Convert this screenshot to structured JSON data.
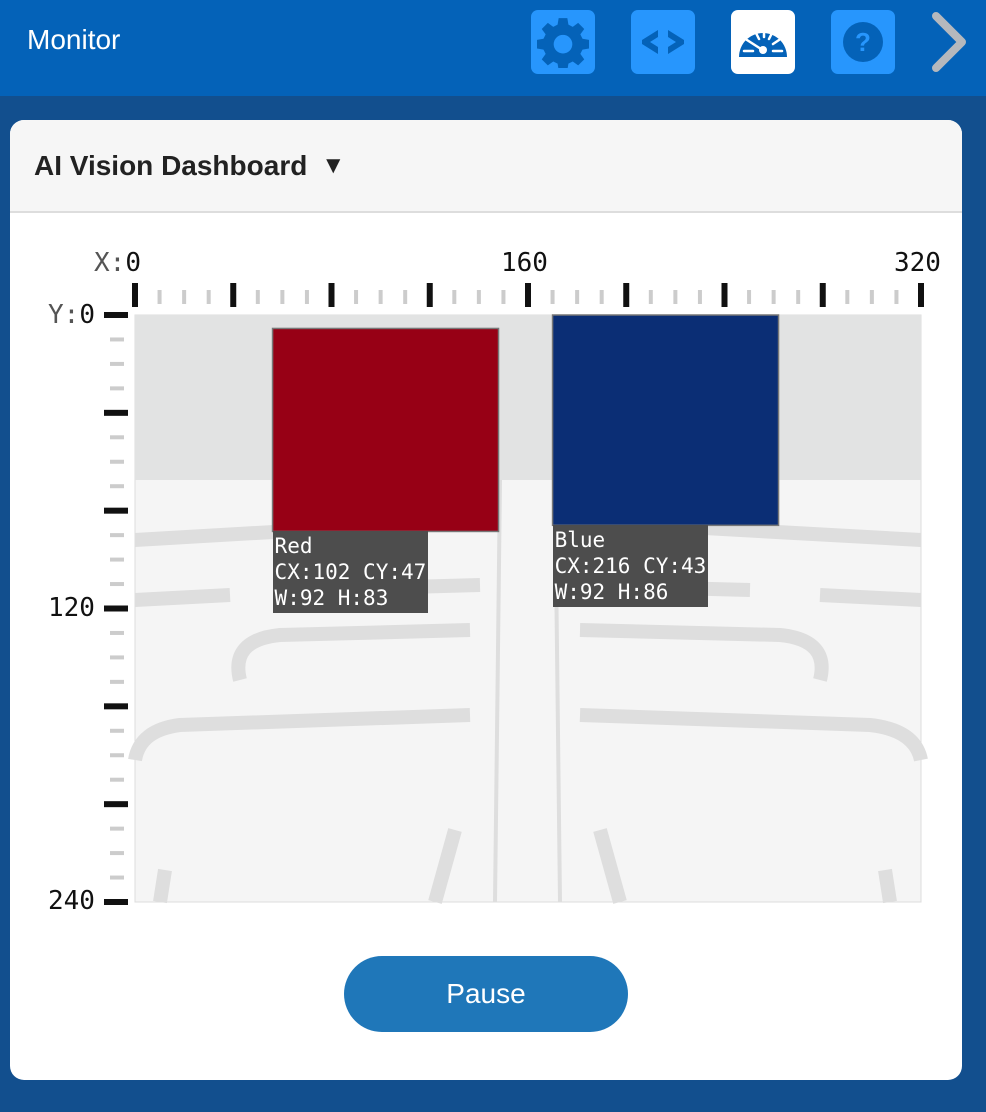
{
  "header": {
    "title": "Monitor",
    "buttons": [
      {
        "name": "settings",
        "icon": "gear-icon"
      },
      {
        "name": "code",
        "icon": "code-icon"
      },
      {
        "name": "dashboard",
        "icon": "gauge-icon",
        "active": true
      },
      {
        "name": "help",
        "icon": "help-icon"
      }
    ],
    "next_icon": "chevron-right-icon"
  },
  "panel": {
    "title": "AI Vision Dashboard",
    "dropdown_glyph": "▼"
  },
  "view": {
    "x_axis": {
      "prefix": "X:",
      "ticks": [
        "0",
        "160",
        "320"
      ],
      "min": 0,
      "max": 320
    },
    "y_axis": {
      "prefix": "Y:",
      "ticks": [
        "0",
        "120",
        "240"
      ],
      "min": 0,
      "max": 240
    },
    "objects": [
      {
        "name": "Red",
        "color": "#970015",
        "cx": 102,
        "cy": 47,
        "w": 92,
        "h": 83,
        "line1": "Red",
        "line2": "CX:102 CY:47",
        "line3": "W:92 H:83"
      },
      {
        "name": "Blue",
        "color": "#0b2e75",
        "cx": 216,
        "cy": 43,
        "w": 92,
        "h": 86,
        "line1": "Blue",
        "line2": "CX:216 CY:43",
        "line3": "W:92 H:86"
      }
    ]
  },
  "pause_label": "Pause"
}
